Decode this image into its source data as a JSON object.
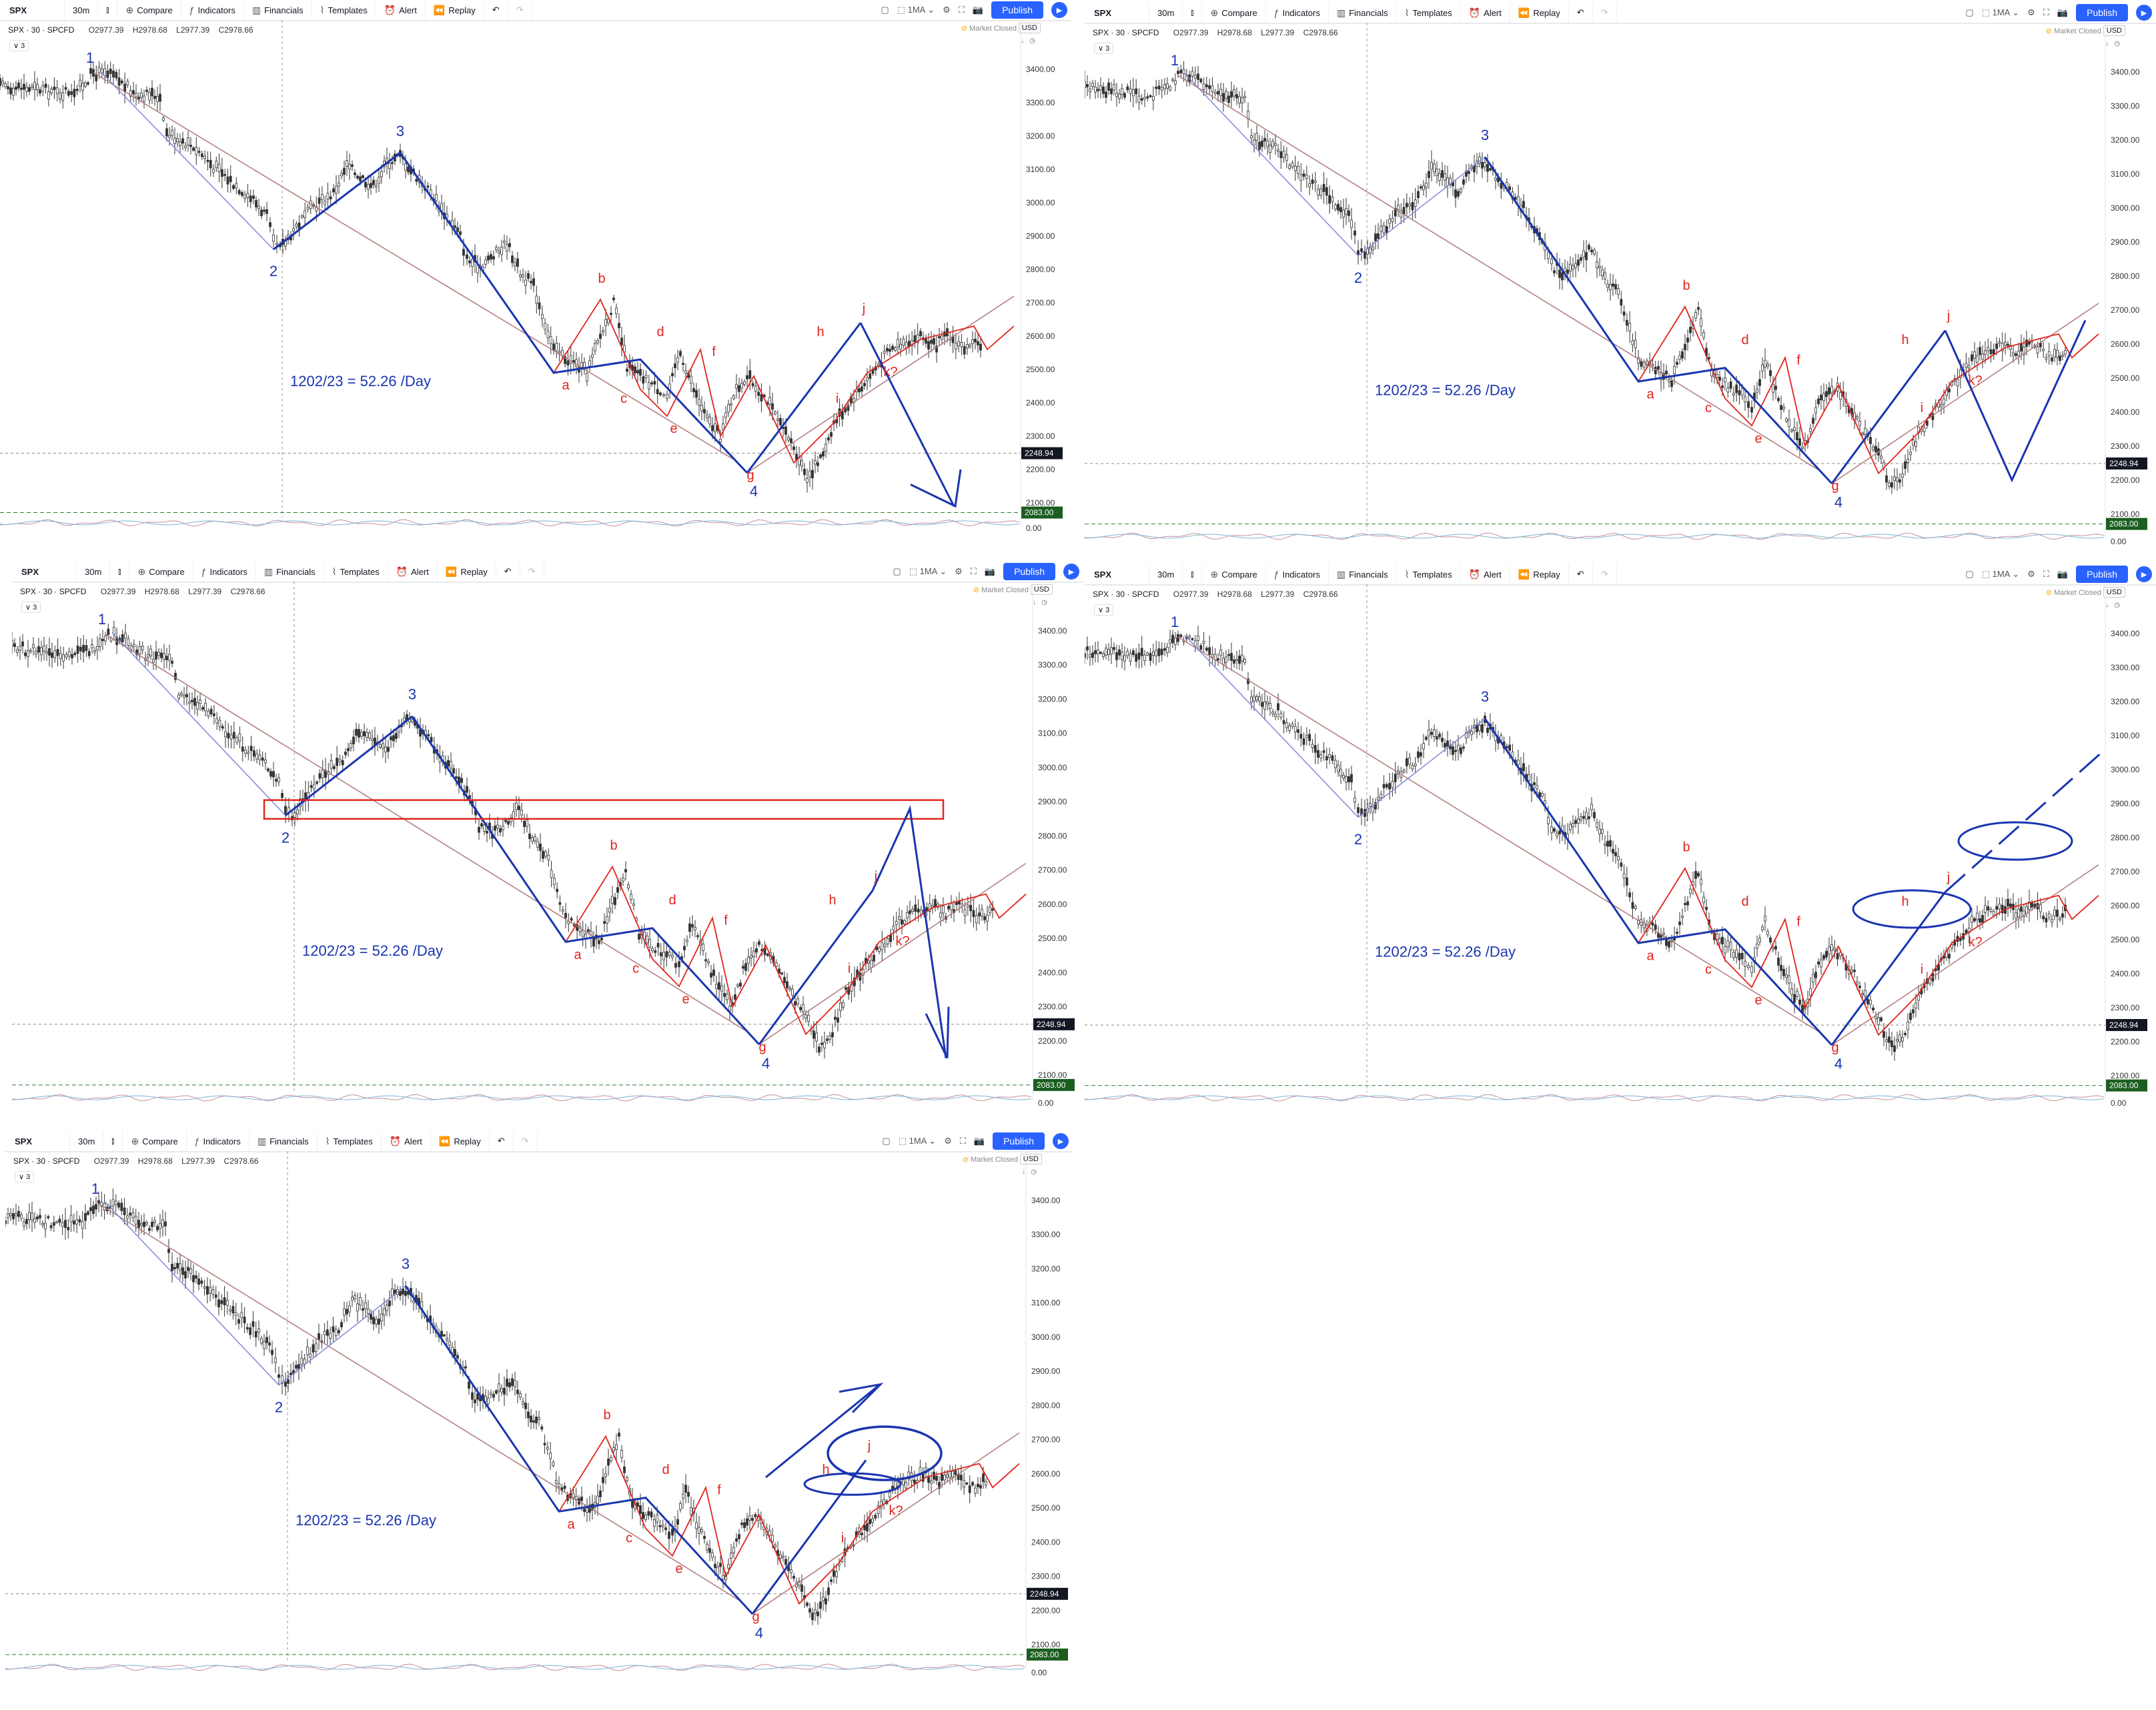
{
  "toolbar": {
    "symbol": "SPX",
    "interval": "30m",
    "compare": "Compare",
    "indicators": "Indicators",
    "financials": "Financials",
    "templates": "Templates",
    "alert": "Alert",
    "replay": "Replay",
    "ma": "1MA",
    "publish": "Publish"
  },
  "legend": {
    "title": "SPX · 30 · SPCFD",
    "open": "O2977.39",
    "high": "H2978.68",
    "low": "L2977.39",
    "close": "C2978.66",
    "collapse": "∨ 3"
  },
  "status": {
    "market": "Market Closed",
    "currency": "USD"
  },
  "annotation": "1202/23 = 52.26 /Day",
  "price_tags": {
    "current": "2248.94",
    "low_line": "2083.00"
  },
  "axis_ticks": [
    "3400.00",
    "3300.00",
    "3200.00",
    "3100.00",
    "3000.00",
    "2900.00",
    "2800.00",
    "2700.00",
    "2600.00",
    "2500.00",
    "2400.00",
    "2300.00",
    "2200.00",
    "2100.00",
    "0.00"
  ],
  "wave_labels": {
    "blue": [
      "1",
      "2",
      "3",
      "4"
    ],
    "red": [
      "a",
      "b",
      "c",
      "d",
      "e",
      "f",
      "g",
      "h",
      "i",
      "j",
      "k?"
    ]
  },
  "colors": {
    "wave_blue": "#1a35b0",
    "wave_red": "#e0241b",
    "trend_line": "#b07a7a",
    "wedge_line": "#8088d8",
    "box_red": "#e0241b",
    "publish_blue": "#2962ff"
  },
  "panels": [
    {
      "id": "panel-1",
      "projection": "drop",
      "extras": []
    },
    {
      "id": "panel-2",
      "projection": "zigzag",
      "extras": []
    },
    {
      "id": "panel-3",
      "projection": "box-drop",
      "extras": [
        "box"
      ]
    },
    {
      "id": "panel-4",
      "projection": "breakout-up",
      "extras": [
        "ellipse-small",
        "ellipse-target"
      ]
    },
    {
      "id": "panel-5",
      "projection": "arrow-up",
      "extras": [
        "ellipse-large",
        "ellipse-small"
      ]
    }
  ]
}
